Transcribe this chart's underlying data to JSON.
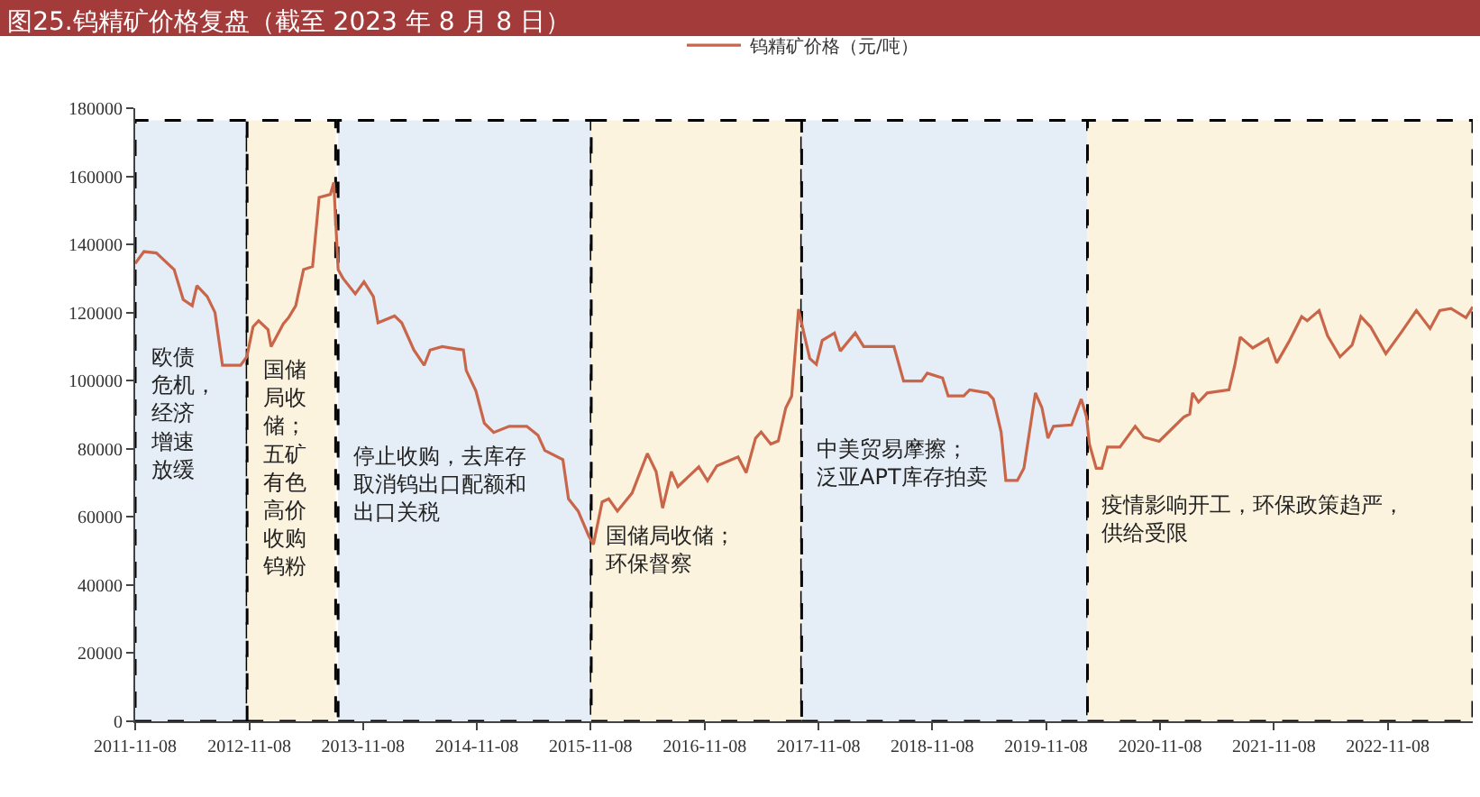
{
  "chart_data": {
    "type": "line",
    "title": "图25.钨精矿价格复盘（截至 2023 年 8 月 8 日）",
    "x": [
      "2011-11-08",
      "2011-12-06",
      "2012-01-15",
      "2012-03-12",
      "2012-04-10",
      "2012-05-09",
      "2012-05-24",
      "2012-06-26",
      "2012-07-21",
      "2012-08-14",
      "2012-10-11",
      "2012-10-31",
      "2012-11-20",
      "2012-12-08",
      "2013-01-07",
      "2013-01-17",
      "2013-02-25",
      "2013-03-14",
      "2013-04-06",
      "2013-05-01",
      "2013-05-30",
      "2013-06-20",
      "2013-07-26",
      "2013-08-06",
      "2013-08-20",
      "2013-09-05",
      "2013-10-14",
      "2013-11-11",
      "2013-12-11",
      "2013-12-26",
      "2014-02-17",
      "2014-03-12",
      "2014-04-20",
      "2014-05-23",
      "2014-06-11",
      "2014-07-20",
      "2014-09-26",
      "2014-10-05",
      "2014-11-05",
      "2014-12-02",
      "2015-01-01",
      "2015-02-20",
      "2015-04-17",
      "2015-05-23",
      "2015-06-14",
      "2015-08-11",
      "2015-08-29",
      "2015-09-29",
      "2015-11-01",
      "2015-11-17",
      "2015-12-15",
      "2016-01-05",
      "2016-02-02",
      "2016-03-20",
      "2016-05-08",
      "2016-06-05",
      "2016-06-26",
      "2016-07-24",
      "2016-08-14",
      "2016-10-20",
      "2016-11-17",
      "2016-12-17",
      "2017-02-23",
      "2017-03-21",
      "2017-04-20",
      "2017-05-08",
      "2017-06-08",
      "2017-07-02",
      "2017-07-26",
      "2017-08-14",
      "2017-09-05",
      "2017-09-23",
      "2017-10-11",
      "2017-11-01",
      "2017-11-20",
      "2017-12-29",
      "2018-01-17",
      "2018-03-06",
      "2018-04-02",
      "2018-07-08",
      "2018-08-08",
      "2018-10-05",
      "2018-10-23",
      "2018-12-11",
      "2018-12-29",
      "2019-02-17",
      "2019-03-08",
      "2019-05-05",
      "2019-05-23",
      "2019-06-17",
      "2019-07-02",
      "2019-08-08",
      "2019-08-29",
      "2019-10-05",
      "2019-10-26",
      "2019-11-14",
      "2019-12-02",
      "2020-01-29",
      "2020-02-29",
      "2020-03-17",
      "2020-03-26",
      "2020-04-17",
      "2020-05-05",
      "2020-05-23",
      "2020-07-02",
      "2020-08-20",
      "2020-09-17",
      "2020-11-05",
      "2020-12-05",
      "2021-01-23",
      "2021-02-11",
      "2021-02-20",
      "2021-03-11",
      "2021-04-08",
      "2021-06-17",
      "2021-07-05",
      "2021-07-23",
      "2021-09-01",
      "2021-10-20",
      "2021-11-17",
      "2021-12-26",
      "2022-02-05",
      "2022-02-23",
      "2022-04-02",
      "2022-04-29",
      "2022-06-08",
      "2022-07-17",
      "2022-08-14",
      "2022-09-14",
      "2022-11-02",
      "2022-12-20",
      "2023-02-08",
      "2023-03-24",
      "2023-04-24",
      "2023-05-30",
      "2023-07-17",
      "2023-08-08"
    ],
    "series": [
      {
        "name": "钨精矿价格（元/吨）",
        "color": "#c9664a",
        "values": [
          134400,
          137900,
          137500,
          132600,
          123800,
          122000,
          127900,
          124700,
          120000,
          104500,
          104500,
          107000,
          115800,
          117600,
          115000,
          110000,
          116700,
          118500,
          122000,
          132600,
          133500,
          153800,
          154700,
          158200,
          132600,
          130000,
          125500,
          129000,
          124700,
          117000,
          119000,
          117000,
          109000,
          104500,
          109000,
          110000,
          109000,
          103000,
          97000,
          87500,
          84800,
          86600,
          86600,
          84000,
          79500,
          76800,
          65300,
          61700,
          54600,
          51900,
          64400,
          65300,
          61700,
          67000,
          78600,
          73300,
          62600,
          73300,
          68900,
          74700,
          70600,
          75000,
          77600,
          73000,
          83100,
          84900,
          81400,
          82300,
          92000,
          95500,
          121000,
          113600,
          106500,
          104800,
          111800,
          114000,
          108700,
          114000,
          110000,
          110000,
          99900,
          99900,
          102200,
          100800,
          95500,
          95500,
          97300,
          96400,
          94600,
          84900,
          70700,
          70700,
          74300,
          96400,
          92000,
          83100,
          86600,
          87000,
          94600,
          89300,
          81400,
          74300,
          74300,
          80500,
          80500,
          86600,
          83400,
          82200,
          84900,
          89300,
          90200,
          96400,
          93700,
          96400,
          97300,
          104300,
          112800,
          109600,
          112300,
          105200,
          111400,
          118800,
          117600,
          120600,
          113200,
          107000,
          110500,
          118800,
          115800,
          107900,
          114000,
          120600,
          115300,
          120600,
          121200,
          118500,
          121700
        ]
      }
    ],
    "xlim": [
      "2011-11-08",
      "2023-08-08"
    ],
    "xticks": [
      "2011-11-08",
      "2012-11-08",
      "2013-11-08",
      "2014-11-08",
      "2015-11-08",
      "2016-11-08",
      "2017-11-08",
      "2018-11-08",
      "2019-11-08",
      "2020-11-08",
      "2021-11-08",
      "2022-11-08"
    ],
    "ylim": [
      0,
      180000
    ],
    "yticks": [
      0,
      20000,
      40000,
      60000,
      80000,
      100000,
      120000,
      140000,
      160000,
      180000
    ],
    "bands": [
      {
        "axis": "x",
        "from": "2011-11-08",
        "to": "2012-11-01",
        "label": "欧债危机，经济增速放缓",
        "color": "#e5edf6"
      },
      {
        "axis": "x",
        "from": "2012-11-01",
        "to": "2013-08-12",
        "label": "国储局收储；五矿有色高价收购钨粉",
        "color": "#fcf3de"
      },
      {
        "axis": "x",
        "from": "2013-08-20",
        "to": "2015-11-10",
        "label": "停止收购，去库存取消钨出口配额和出口关税",
        "color": "#e5edf6"
      },
      {
        "axis": "x",
        "from": "2015-11-10",
        "to": "2017-09-15",
        "label": "国储局收储；环保督察",
        "color": "#fcf3de"
      },
      {
        "axis": "x",
        "from": "2017-09-15",
        "to": "2020-03-20",
        "label": "中美贸易摩擦；泛亚APT库存拍卖",
        "color": "#e5edf6"
      },
      {
        "axis": "x",
        "from": "2020-03-20",
        "to": "2023-08-08",
        "label": "疫情影响开工，环保政策趋严，供给受限",
        "color": "#fcf3de"
      }
    ],
    "grid": false,
    "legend": "top",
    "line_style": "solid",
    "marker": "none"
  }
}
